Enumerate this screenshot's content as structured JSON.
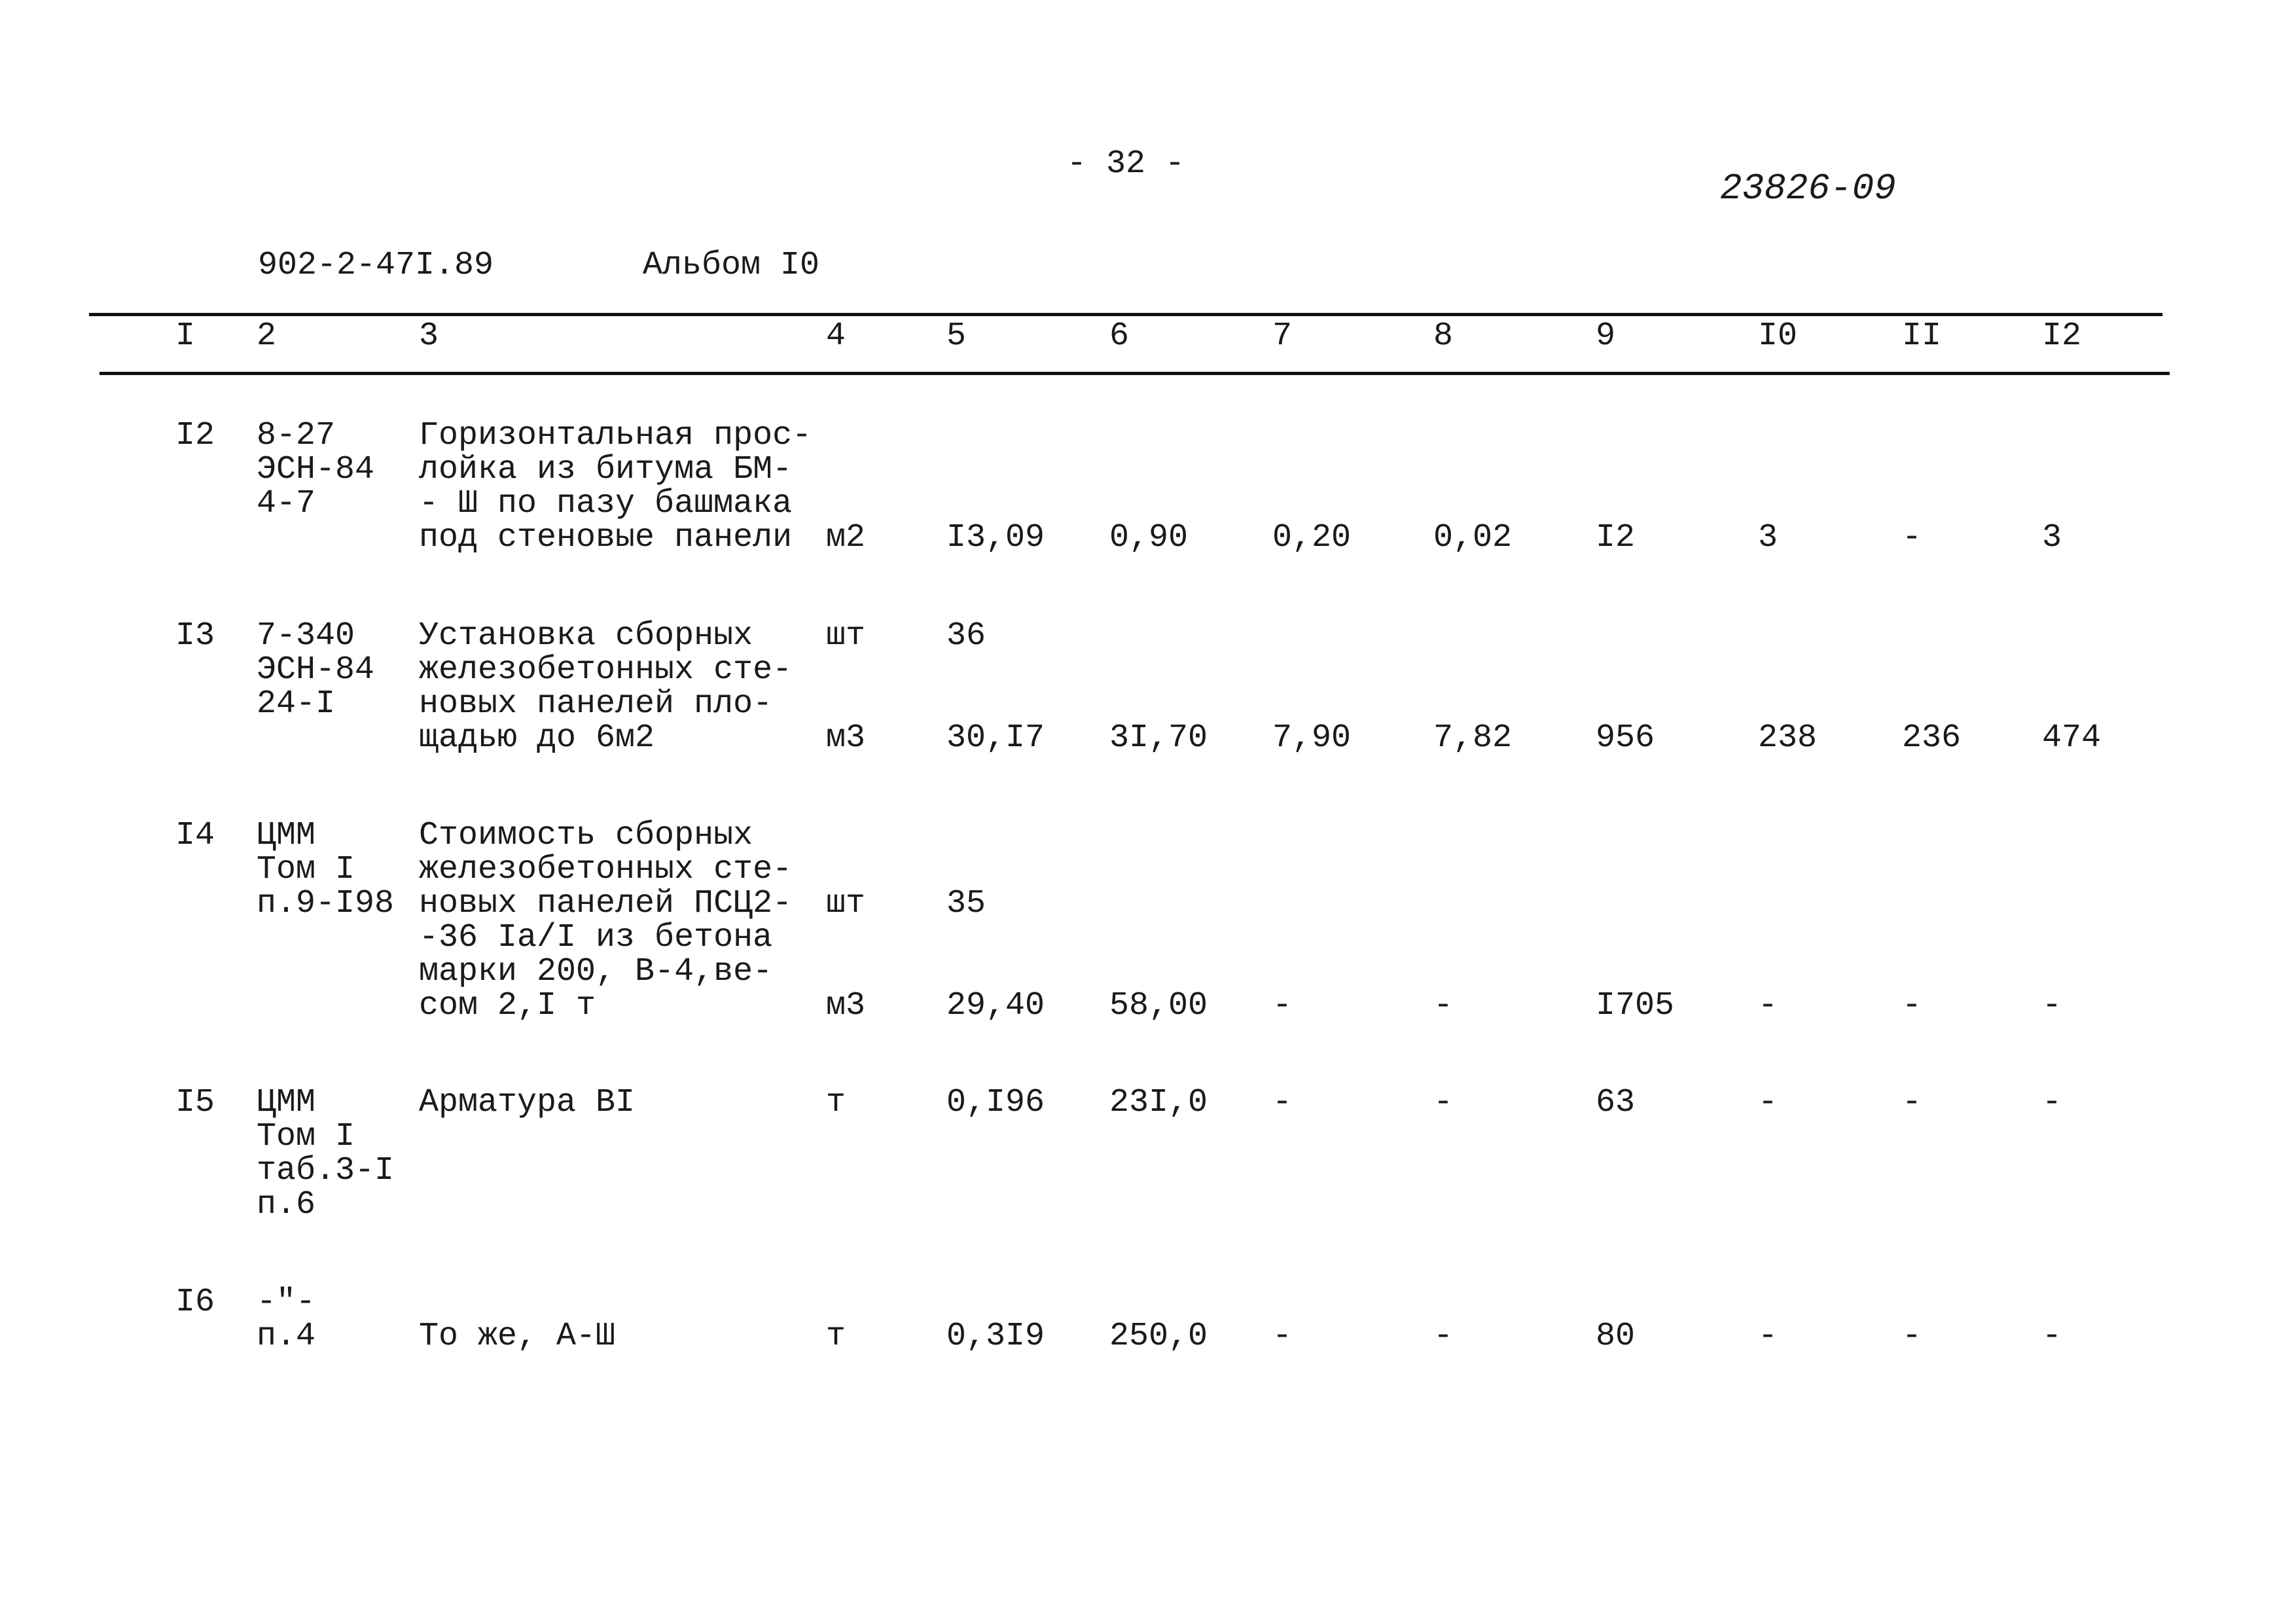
{
  "page_number": "- 32 -",
  "document_stamp": "23826-09",
  "project_code": "902-2-47I.89",
  "album": "Альбом I0",
  "columns": [
    "I",
    "2",
    "3",
    "4",
    "5",
    "6",
    "7",
    "8",
    "9",
    "I0",
    "II",
    "I2"
  ],
  "rows": [
    {
      "number": "I2",
      "code": [
        "8-27",
        "ЭСН-84",
        "4-7"
      ],
      "description": [
        "Горизонтальная прос-",
        "лойка из битума БМ-",
        "- Ш по пазу башмака",
        "под стеновые панели"
      ],
      "entries": [
        {
          "unit": "м2",
          "values": [
            "I3,09",
            "0,90",
            "0,20",
            "0,02",
            "I2",
            "3",
            "-",
            "3"
          ]
        }
      ]
    },
    {
      "number": "I3",
      "code": [
        "7-340",
        "ЭСН-84",
        "24-I"
      ],
      "description": [
        "Установка сборных",
        "железобетонных сте-",
        "новых панелей пло-",
        "щадью до 6м2"
      ],
      "entries": [
        {
          "unit": "шт",
          "values": [
            "36",
            "",
            "",
            "",
            "",
            "",
            "",
            ""
          ]
        },
        {
          "unit": "м3",
          "values": [
            "30,I7",
            "3I,70",
            "7,90",
            "7,82",
            "956",
            "238",
            "236",
            "474"
          ]
        }
      ]
    },
    {
      "number": "I4",
      "code": [
        "ЦММ",
        "Том I",
        "п.9-I98"
      ],
      "description": [
        "Стоимость сборных",
        "железобетонных сте-",
        "новых панелей ПСЦ2-",
        "-36 Iа/I из бетона",
        "марки 200, В-4,ве-",
        "сом 2,I т"
      ],
      "entries": [
        {
          "unit": "шт",
          "values": [
            "35",
            "",
            "",
            "",
            "",
            "",
            "",
            ""
          ]
        },
        {
          "unit": "м3",
          "values": [
            "29,40",
            "58,00",
            "-",
            "-",
            "I705",
            "-",
            "-",
            "-"
          ]
        }
      ]
    },
    {
      "number": "I5",
      "code": [
        "ЦММ",
        "Том I",
        "таб.3-I",
        "п.6"
      ],
      "description": [
        "Арматура ВI"
      ],
      "entries": [
        {
          "unit": "т",
          "values": [
            "0,I96",
            "23I,0",
            "-",
            "-",
            "63",
            "-",
            "-",
            "-"
          ]
        }
      ]
    },
    {
      "number": "I6",
      "code": [
        "-\"-",
        "п.4"
      ],
      "description": [
        "",
        "То же, А-Ш"
      ],
      "entries": [
        {
          "unit": "т",
          "values": [
            "0,3I9",
            "250,0",
            "-",
            "-",
            "80",
            "-",
            "-",
            "-"
          ]
        }
      ]
    }
  ]
}
